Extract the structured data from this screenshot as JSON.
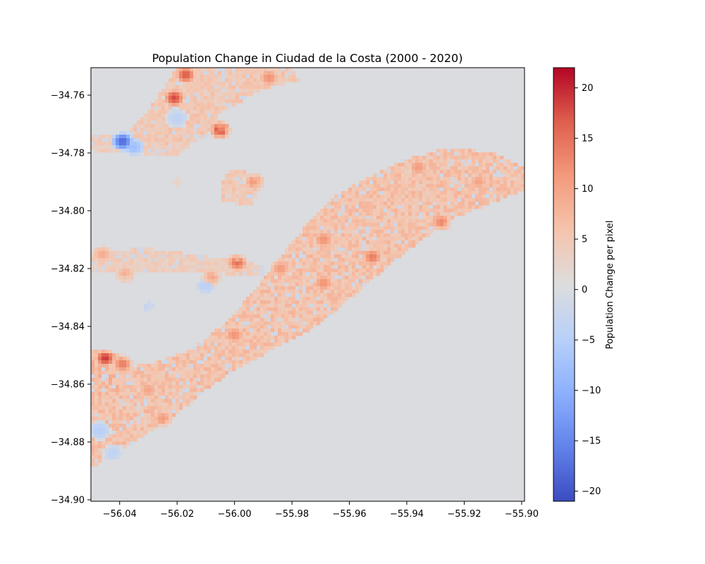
{
  "chart_data": {
    "type": "heatmap",
    "title": "Population Change in Ciudad de la Costa (2000 - 2020)",
    "xlabel": "",
    "ylabel": "",
    "xlim": [
      -56.05,
      -55.899
    ],
    "ylim": [
      -34.9005,
      -34.7505
    ],
    "x_ticks": [
      {
        "value": -56.04,
        "label": "−56.04"
      },
      {
        "value": -56.02,
        "label": "−56.02"
      },
      {
        "value": -56.0,
        "label": "−56.00"
      },
      {
        "value": -55.98,
        "label": "−55.98"
      },
      {
        "value": -55.96,
        "label": "−55.96"
      },
      {
        "value": -55.94,
        "label": "−55.94"
      },
      {
        "value": -55.92,
        "label": "−55.92"
      },
      {
        "value": -55.9,
        "label": "−55.90"
      }
    ],
    "y_ticks": [
      {
        "value": -34.76,
        "label": "−34.76"
      },
      {
        "value": -34.78,
        "label": "−34.78"
      },
      {
        "value": -34.8,
        "label": "−34.80"
      },
      {
        "value": -34.82,
        "label": "−34.82"
      },
      {
        "value": -34.84,
        "label": "−34.84"
      },
      {
        "value": -34.86,
        "label": "−34.86"
      },
      {
        "value": -34.88,
        "label": "−34.88"
      },
      {
        "value": -34.9,
        "label": "−34.90"
      }
    ],
    "colormap": "coolwarm",
    "colorbar": {
      "label": "Population Change per pixel",
      "vmin": -21,
      "vmax": 22,
      "ticks": [
        {
          "value": 20,
          "label": "20"
        },
        {
          "value": 15,
          "label": "15"
        },
        {
          "value": 10,
          "label": "10"
        },
        {
          "value": 5,
          "label": "5"
        },
        {
          "value": 0,
          "label": "0"
        },
        {
          "value": -5,
          "label": "−5"
        },
        {
          "value": -10,
          "label": "−10"
        },
        {
          "value": -15,
          "label": "−15"
        },
        {
          "value": -20,
          "label": "−20"
        }
      ]
    },
    "grid": false,
    "background_value": 0,
    "regions": [
      {
        "name": "coastal-urban-band",
        "value": 6,
        "polygon": [
          [
            -56.05,
            -34.889
          ],
          [
            -56.035,
            -34.88
          ],
          [
            -56.02,
            -34.87
          ],
          [
            -56.01,
            -34.862
          ],
          [
            -56.0,
            -34.855
          ],
          [
            -55.985,
            -34.847
          ],
          [
            -55.975,
            -34.842
          ],
          [
            -55.965,
            -34.835
          ],
          [
            -55.955,
            -34.826
          ],
          [
            -55.945,
            -34.818
          ],
          [
            -55.935,
            -34.81
          ],
          [
            -55.925,
            -34.803
          ],
          [
            -55.91,
            -34.797
          ],
          [
            -55.899,
            -34.793
          ],
          [
            -55.899,
            -34.785
          ],
          [
            -55.91,
            -34.78
          ],
          [
            -55.925,
            -34.778
          ],
          [
            -55.94,
            -34.782
          ],
          [
            -55.955,
            -34.789
          ],
          [
            -55.965,
            -34.795
          ],
          [
            -55.975,
            -34.805
          ],
          [
            -55.985,
            -34.817
          ],
          [
            -55.995,
            -34.83
          ],
          [
            -56.005,
            -34.84
          ],
          [
            -56.015,
            -34.848
          ],
          [
            -56.03,
            -34.853
          ],
          [
            -56.05,
            -34.856
          ]
        ]
      },
      {
        "name": "northwest-settlement-upper",
        "value": 5,
        "polygon": [
          [
            -56.02,
            -34.7505
          ],
          [
            -55.98,
            -34.7505
          ],
          [
            -55.978,
            -34.755
          ],
          [
            -55.99,
            -34.758
          ],
          [
            -56.005,
            -34.766
          ],
          [
            -56.01,
            -34.775
          ],
          [
            -56.025,
            -34.777
          ],
          [
            -56.04,
            -34.775
          ],
          [
            -56.03,
            -34.765
          ]
        ]
      },
      {
        "name": "northwest-settlement-lower",
        "value": 4,
        "polygon": [
          [
            -56.05,
            -34.774
          ],
          [
            -56.03,
            -34.773
          ],
          [
            -56.015,
            -34.777
          ],
          [
            -56.02,
            -34.781
          ],
          [
            -56.04,
            -34.78
          ],
          [
            -56.05,
            -34.779
          ]
        ]
      },
      {
        "name": "central-patch",
        "value": 5,
        "polygon": [
          [
            -56.002,
            -34.786
          ],
          [
            -55.996,
            -34.786
          ],
          [
            -55.992,
            -34.793
          ],
          [
            -55.994,
            -34.798
          ],
          [
            -56.004,
            -34.797
          ],
          [
            -56.005,
            -34.792
          ]
        ]
      },
      {
        "name": "west-mid-strip",
        "value": 4,
        "polygon": [
          [
            -56.05,
            -34.814
          ],
          [
            -56.03,
            -34.813
          ],
          [
            -56.015,
            -34.815
          ],
          [
            -56.0,
            -34.817
          ],
          [
            -55.99,
            -34.819
          ],
          [
            -55.99,
            -34.823
          ],
          [
            -56.0,
            -34.822
          ],
          [
            -56.02,
            -34.821
          ],
          [
            -56.04,
            -34.821
          ],
          [
            -56.05,
            -34.821
          ]
        ]
      },
      {
        "name": "southwest-edge",
        "value": 7,
        "polygon": [
          [
            -56.05,
            -34.848
          ],
          [
            -56.04,
            -34.85
          ],
          [
            -56.035,
            -34.856
          ],
          [
            -56.04,
            -34.862
          ],
          [
            -56.05,
            -34.865
          ]
        ]
      }
    ],
    "hotspots": [
      {
        "x": -56.045,
        "y": -34.851,
        "value": 19
      },
      {
        "x": -56.021,
        "y": -34.761,
        "value": 18
      },
      {
        "x": -56.017,
        "y": -34.753,
        "value": 17
      },
      {
        "x": -56.005,
        "y": -34.772,
        "value": 20
      },
      {
        "x": -56.039,
        "y": -34.853,
        "value": 14
      },
      {
        "x": -55.999,
        "y": -34.818,
        "value": 15
      },
      {
        "x": -55.952,
        "y": -34.816,
        "value": 14
      },
      {
        "x": -55.969,
        "y": -34.825,
        "value": 12
      },
      {
        "x": -55.928,
        "y": -34.804,
        "value": 13
      },
      {
        "x": -55.969,
        "y": -34.81,
        "value": 12
      },
      {
        "x": -55.984,
        "y": -34.82,
        "value": 11
      },
      {
        "x": -56.0,
        "y": -34.843,
        "value": 12
      },
      {
        "x": -55.988,
        "y": -34.754,
        "value": 12
      },
      {
        "x": -55.915,
        "y": -34.79,
        "value": 10
      },
      {
        "x": -55.993,
        "y": -34.79,
        "value": 12
      },
      {
        "x": -56.025,
        "y": -34.872,
        "value": 11
      },
      {
        "x": -56.03,
        "y": -34.862,
        "value": 10
      },
      {
        "x": -56.008,
        "y": -34.823,
        "value": 10
      },
      {
        "x": -56.046,
        "y": -34.815,
        "value": 9
      },
      {
        "x": -56.038,
        "y": -34.822,
        "value": 9
      },
      {
        "x": -55.936,
        "y": -34.785,
        "value": 11
      },
      {
        "x": -56.02,
        "y": -34.79,
        "value": 3
      }
    ],
    "coldspots": [
      {
        "x": -56.039,
        "y": -34.776,
        "value": -18
      },
      {
        "x": -56.035,
        "y": -34.778,
        "value": -8
      },
      {
        "x": -56.047,
        "y": -34.876,
        "value": -5
      },
      {
        "x": -56.042,
        "y": -34.884,
        "value": -4
      },
      {
        "x": -56.01,
        "y": -34.826,
        "value": -5
      },
      {
        "x": -56.02,
        "y": -34.768,
        "value": -4
      },
      {
        "x": -55.97,
        "y": -34.785,
        "value": -2
      },
      {
        "x": -56.03,
        "y": -34.833,
        "value": -3
      }
    ]
  }
}
